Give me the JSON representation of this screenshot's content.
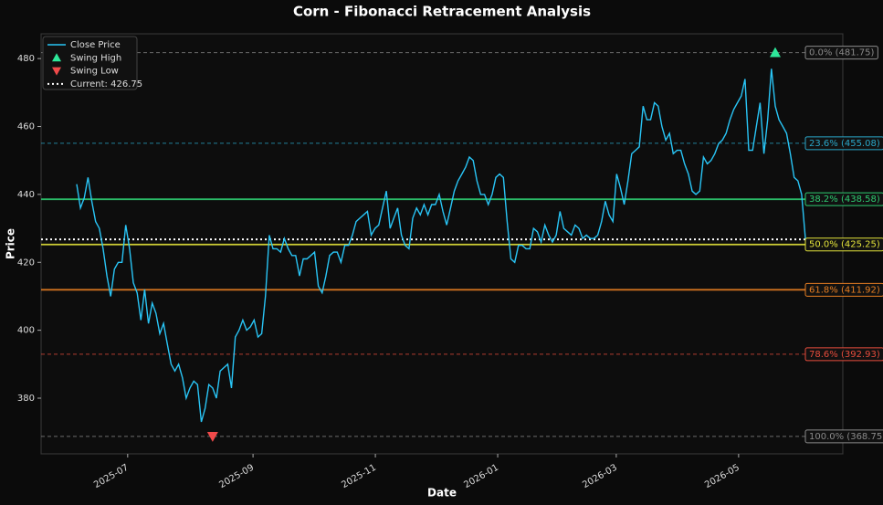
{
  "chart_data": {
    "type": "line",
    "title": "Corn - Fibonacci Retracement Analysis",
    "x_label": "Date",
    "y_label": "Price",
    "series": [
      {
        "name": "Close Price",
        "color": "#29c5f6",
        "values": [
          443,
          436,
          439,
          445,
          438,
          432,
          430,
          424,
          416,
          410,
          418,
          420,
          420,
          431,
          424,
          414,
          411,
          403,
          412,
          402,
          408,
          405,
          399,
          402,
          396,
          390,
          388,
          390,
          386,
          380,
          383,
          385,
          384,
          373,
          377,
          384,
          383,
          380,
          388,
          389,
          390,
          383,
          398,
          400,
          403,
          400,
          401,
          403,
          398,
          399,
          410,
          428,
          424,
          424,
          423,
          427,
          424,
          422,
          422,
          416,
          421,
          421,
          422,
          423,
          413,
          411,
          416,
          422,
          423,
          423,
          420,
          425,
          425,
          428,
          432,
          433,
          434,
          435,
          428,
          430,
          431,
          436,
          441,
          430,
          433,
          436,
          428,
          425,
          424,
          433,
          436,
          434,
          437,
          434,
          437,
          437,
          440,
          435,
          431,
          436,
          441,
          444,
          446,
          448,
          451,
          450,
          444,
          440,
          440,
          437,
          440,
          445,
          446,
          445,
          432,
          421,
          420,
          425,
          425,
          424,
          424,
          430,
          429,
          426,
          431,
          428,
          426,
          428,
          435,
          430,
          429,
          428,
          431,
          430,
          427,
          428,
          427,
          427,
          428,
          432,
          438,
          434,
          432,
          446,
          442,
          437,
          444,
          452,
          453,
          454,
          466,
          462,
          462,
          467,
          466,
          460,
          456,
          458,
          452,
          453,
          453,
          449,
          446,
          441,
          440,
          441,
          451,
          449,
          450,
          452,
          455,
          456,
          458,
          462,
          465,
          467,
          469,
          474,
          453,
          453,
          460,
          467,
          452,
          462,
          477,
          466,
          462,
          460,
          458,
          452,
          445,
          444,
          440,
          426.75
        ]
      }
    ],
    "markers": [
      {
        "name": "Swing High",
        "color": "#2ee89a",
        "shape": "up",
        "x": 185,
        "y": 481.75
      },
      {
        "name": "Swing Low",
        "color": "#f04a4a",
        "shape": "down",
        "x": 36,
        "y": 368.75
      }
    ],
    "current": {
      "name": "Current: 426.75",
      "value": 426.75,
      "color": "#ffffff"
    },
    "levels": [
      {
        "label": "0.0% (481.75)",
        "value": 481.75,
        "color": "#8a8a8a",
        "dashed": true
      },
      {
        "label": "23.6% (455.08)",
        "value": 455.08,
        "color": "#2aa6c8",
        "dashed": true
      },
      {
        "label": "38.2% (438.58)",
        "value": 438.58,
        "color": "#2ecc71",
        "dashed": false
      },
      {
        "label": "50.0% (425.25)",
        "value": 425.25,
        "color": "#e3e33a",
        "dashed": false
      },
      {
        "label": "61.8% (411.92)",
        "value": 411.92,
        "color": "#e67e22",
        "dashed": false
      },
      {
        "label": "78.6% (392.93)",
        "value": 392.93,
        "color": "#e74c3c",
        "dashed": true
      },
      {
        "label": "100.0% (368.75)",
        "value": 368.75,
        "color": "#8a8a8a",
        "dashed": true
      }
    ],
    "xlim": [
      -9.43,
      202.9
    ],
    "xticks": [
      {
        "value": 13.5,
        "label": "2025-07"
      },
      {
        "value": 46.7,
        "label": "2025-09"
      },
      {
        "value": 79.1,
        "label": "2025-11"
      },
      {
        "value": 111.5,
        "label": "2026-01"
      },
      {
        "value": 142.9,
        "label": "2026-03"
      },
      {
        "value": 175.3,
        "label": "2026-05"
      }
    ],
    "ylim": [
      363.6,
      487.3
    ],
    "yticks": [
      380,
      400,
      420,
      440,
      460,
      480
    ],
    "legend": "upper-left"
  }
}
